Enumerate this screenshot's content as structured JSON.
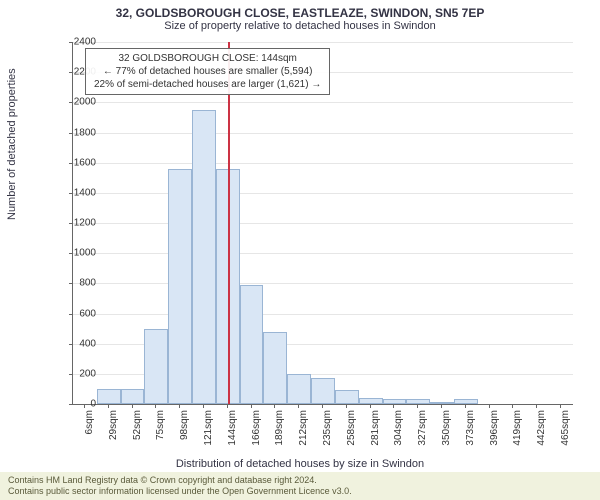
{
  "title_main": "32, GOLDSBOROUGH CLOSE, EASTLEAZE, SWINDON, SN5 7EP",
  "title_sub": "Size of property relative to detached houses in Swindon",
  "y_axis_title": "Number of detached properties",
  "x_axis_title": "Distribution of detached houses by size in Swindon",
  "chart": {
    "type": "histogram",
    "ylim": [
      0,
      2400
    ],
    "ytick_step": 200,
    "bar_fill": "#d9e6f5",
    "bar_border": "#9ab5d4",
    "grid_color": "#e6e6e6",
    "axis_color": "#666666",
    "marker_color": "#cc3344",
    "background": "#ffffff",
    "title_fontsize": 12,
    "label_fontsize": 11,
    "tick_fontsize": 10,
    "x_categories": [
      "6sqm",
      "29sqm",
      "52sqm",
      "75sqm",
      "98sqm",
      "121sqm",
      "144sqm",
      "166sqm",
      "189sqm",
      "212sqm",
      "235sqm",
      "258sqm",
      "281sqm",
      "304sqm",
      "327sqm",
      "350sqm",
      "373sqm",
      "396sqm",
      "419sqm",
      "442sqm",
      "465sqm"
    ],
    "bars": [
      {
        "x_index": 1,
        "value": 100
      },
      {
        "x_index": 2,
        "value": 100
      },
      {
        "x_index": 3,
        "value": 500
      },
      {
        "x_index": 4,
        "value": 1560
      },
      {
        "x_index": 5,
        "value": 1950
      },
      {
        "x_index": 6,
        "value": 1560
      },
      {
        "x_index": 7,
        "value": 790
      },
      {
        "x_index": 8,
        "value": 480
      },
      {
        "x_index": 9,
        "value": 200
      },
      {
        "x_index": 10,
        "value": 170
      },
      {
        "x_index": 11,
        "value": 90
      },
      {
        "x_index": 12,
        "value": 40
      },
      {
        "x_index": 13,
        "value": 30
      },
      {
        "x_index": 14,
        "value": 30
      },
      {
        "x_index": 15,
        "value": 15
      },
      {
        "x_index": 16,
        "value": 30
      }
    ],
    "marker_x_index": 6
  },
  "info_box": {
    "line1": "32 GOLDSBOROUGH CLOSE: 144sqm",
    "line2": "← 77% of detached houses are smaller (5,594)",
    "line3": "22% of semi-detached houses are larger (1,621) →"
  },
  "license": {
    "line1": "Contains HM Land Registry data © Crown copyright and database right 2024.",
    "line2": "Contains public sector information licensed under the Open Government Licence v3.0."
  }
}
